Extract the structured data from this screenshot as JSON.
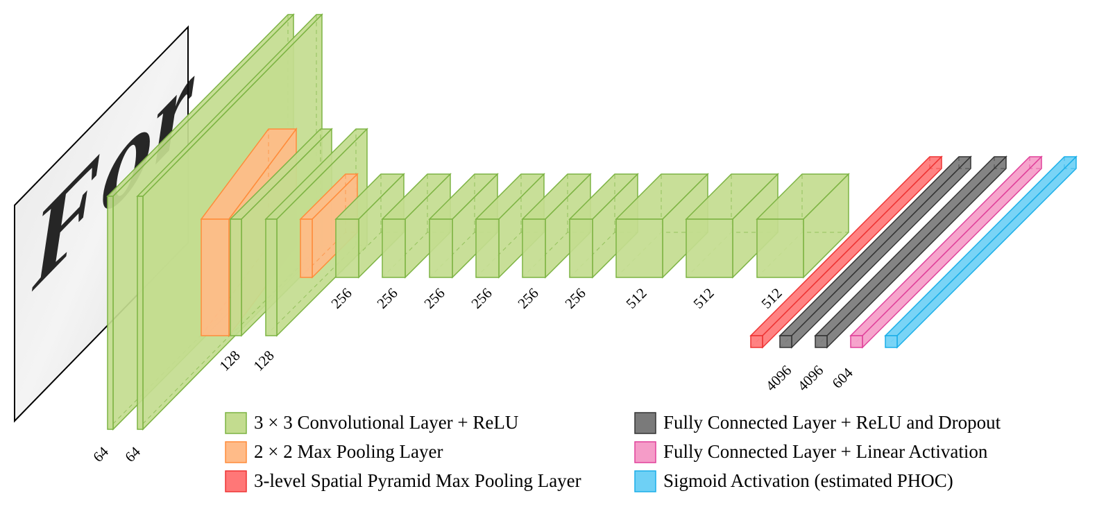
{
  "input_image": {
    "handwriting_text": "For"
  },
  "layers": {
    "conv1": {
      "label": "64"
    },
    "conv2": {
      "label": "64"
    },
    "pool1": {
      "label": ""
    },
    "conv3": {
      "label": "128"
    },
    "conv4": {
      "label": "128"
    },
    "pool2": {
      "label": ""
    },
    "conv5": {
      "label": "256"
    },
    "conv6": {
      "label": "256"
    },
    "conv7": {
      "label": "256"
    },
    "conv8": {
      "label": "256"
    },
    "conv9": {
      "label": "256"
    },
    "conv10": {
      "label": "256"
    },
    "conv11": {
      "label": "512"
    },
    "conv12": {
      "label": "512"
    },
    "conv13": {
      "label": "512"
    },
    "spp": {
      "label": ""
    },
    "fc1": {
      "label": "4096"
    },
    "fc2": {
      "label": "4096"
    },
    "fc3": {
      "label": "604"
    },
    "sigmoid": {
      "label": ""
    }
  },
  "legend": {
    "conv": "3 × 3 Convolutional Layer + ReLU",
    "pool": "2 × 2 Max Pooling Layer",
    "spp": "3-level Spatial Pyramid Max Pooling Layer",
    "fc_relu": "Fully Connected Layer + ReLU and Dropout",
    "fc_linear": "Fully Connected Layer + Linear Activation",
    "sigmoid": "Sigmoid Activation (estimated PHOC)"
  },
  "colors": {
    "conv_fill": "#c3dc8f",
    "conv_stroke": "#7cb342",
    "pool_fill": "#ffbb88",
    "pool_stroke": "#ff8c3a",
    "spp_fill": "#ff7777",
    "spp_stroke": "#ee3333",
    "fc_relu_fill": "#7a7a7a",
    "fc_relu_stroke": "#333333",
    "fc_linear_fill": "#f59cc8",
    "fc_linear_stroke": "#e0409a",
    "sigmoid_fill": "#6ed0f5",
    "sigmoid_stroke": "#1aaee8"
  }
}
